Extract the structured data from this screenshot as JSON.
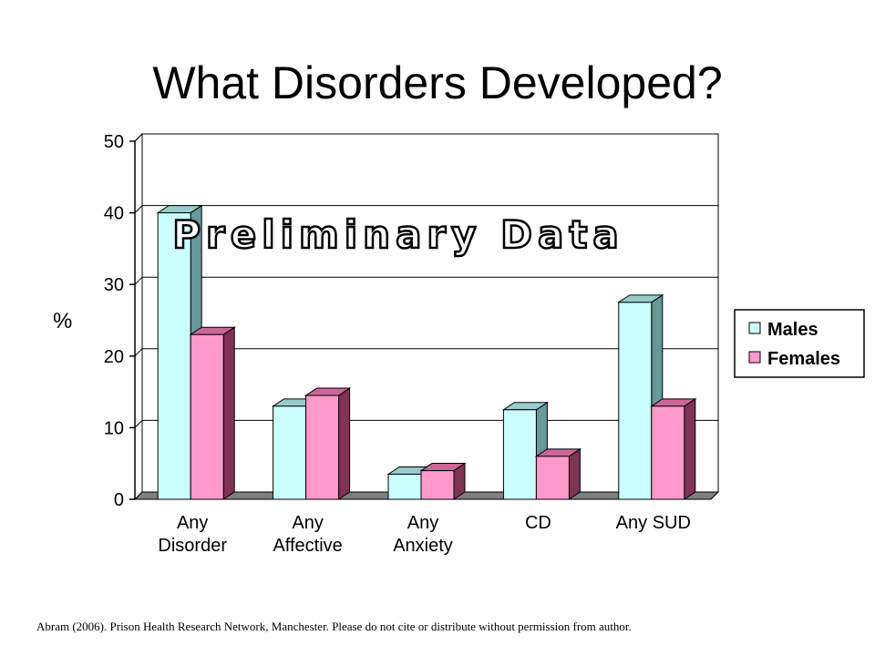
{
  "title": "What Disorders Developed?",
  "citation": "Abram (2006). Prison Health Research Network, Manchester.  Please do not cite or distribute without permission  from author.",
  "colors": {
    "males_front": "#ccffff",
    "males_top": "#99cccc",
    "males_side": "#669999",
    "females_front": "#ff99cc",
    "females_top": "#cc6699",
    "females_side": "#7f3355",
    "floor": "#7f7f7f",
    "watermark_fill": "#ffffff",
    "watermark_stroke": "#000000"
  },
  "chart_data": {
    "type": "bar",
    "title": "",
    "xlabel": "",
    "ylabel": "%",
    "ylim": [
      0,
      50
    ],
    "yticks": [
      0,
      10,
      20,
      30,
      40,
      50
    ],
    "categories": [
      [
        "Any",
        "Disorder"
      ],
      [
        "Any",
        "Affective"
      ],
      [
        "Any",
        "Anxiety"
      ],
      [
        "CD"
      ],
      [
        "Any SUD"
      ]
    ],
    "series": [
      {
        "name": "Males",
        "values": [
          40,
          13,
          3.5,
          12.5,
          27.5
        ]
      },
      {
        "name": "Females",
        "values": [
          23,
          14.5,
          4,
          6,
          13
        ]
      }
    ],
    "annotation": "Preliminary Data",
    "legend_position": "right",
    "grid": true
  }
}
